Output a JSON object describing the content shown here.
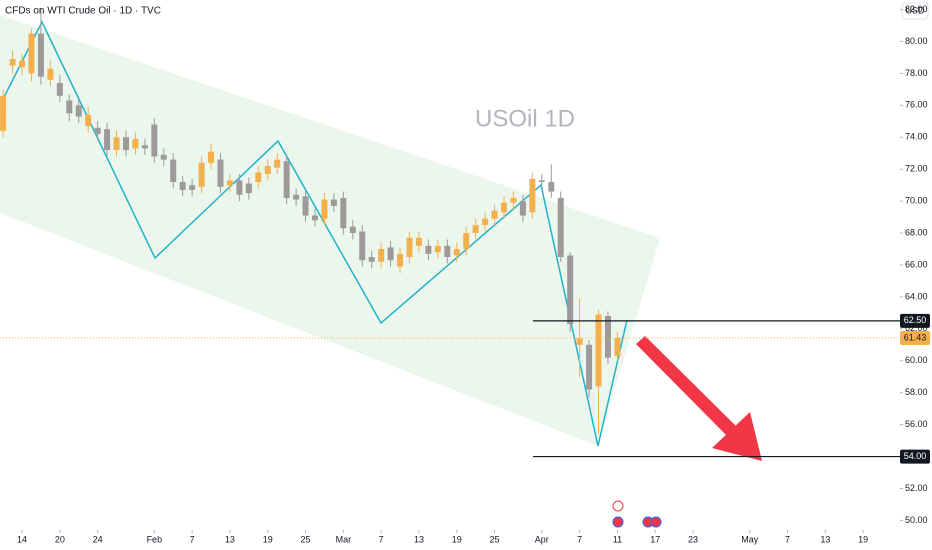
{
  "chart_data": {
    "type": "candlestick",
    "title": "CFDs on WTI Crude Oil · 1D · TVC",
    "watermark": "USOil 1D",
    "currency": "USD",
    "up_color": "#f5b04e",
    "down_color": "#9e999a",
    "x": [
      -2,
      -1,
      0,
      1,
      2,
      3,
      4,
      5,
      6,
      7,
      8,
      9,
      10,
      11,
      12,
      13,
      14,
      15,
      16,
      17,
      18,
      19,
      20,
      21,
      22,
      23,
      24,
      25,
      26,
      27,
      28,
      29,
      30,
      31,
      32,
      33,
      34,
      35,
      36,
      37,
      38,
      39,
      40,
      41,
      42,
      43,
      44,
      45,
      46,
      47,
      48,
      49,
      50,
      51,
      52,
      53,
      54,
      55,
      56,
      57,
      58,
      59,
      60,
      61,
      62,
      63
    ],
    "open": [
      74.4,
      78.5,
      78.4,
      78.0,
      80.5,
      77.6,
      77.4,
      76.3,
      76.0,
      74.7,
      74.6,
      74.5,
      73.2,
      74.0,
      73.3,
      73.5,
      74.8,
      72.9,
      72.6,
      71.2,
      71.0,
      70.9,
      72.4,
      72.6,
      71.0,
      71.3,
      71.1,
      71.2,
      71.7,
      72.1,
      72.5,
      70.4,
      70.3,
      69.1,
      68.9,
      70.1,
      70.2,
      68.4,
      68.1,
      66.5,
      66.2,
      67.1,
      65.9,
      66.5,
      67.2,
      67.2,
      66.8,
      67.2,
      66.6,
      67.0,
      68.0,
      68.5,
      68.9,
      69.3,
      69.9,
      70.0,
      69.3,
      71.3,
      71.2,
      70.2,
      66.6,
      61.0,
      61.0,
      58.4,
      62.8,
      60.3
    ],
    "high": [
      77.0,
      79.4,
      79.2,
      80.8,
      82.1,
      78.8,
      77.9,
      76.7,
      76.4,
      75.9,
      75.0,
      74.9,
      74.4,
      74.4,
      74.3,
      73.9,
      75.2,
      73.3,
      73.0,
      71.6,
      71.4,
      72.8,
      73.6,
      73.0,
      71.7,
      71.7,
      71.5,
      72.2,
      72.6,
      73.0,
      72.9,
      70.8,
      70.7,
      69.5,
      70.5,
      70.5,
      70.6,
      68.8,
      68.5,
      66.9,
      67.4,
      67.5,
      67.1,
      68.1,
      68.1,
      67.6,
      67.6,
      67.6,
      67.4,
      68.4,
      68.9,
      69.3,
      69.8,
      70.3,
      70.6,
      70.4,
      71.8,
      71.7,
      72.3,
      70.6,
      66.8,
      63.9,
      61.3,
      63.2,
      63.1,
      61.8
    ],
    "low": [
      74.0,
      78.0,
      77.9,
      77.5,
      77.3,
      77.2,
      76.2,
      75.0,
      74.9,
      74.3,
      73.8,
      72.8,
      72.8,
      72.8,
      72.9,
      72.9,
      72.4,
      72.2,
      70.8,
      70.3,
      70.3,
      70.5,
      72.0,
      70.5,
      70.6,
      70.0,
      70.1,
      70.8,
      71.3,
      71.7,
      69.8,
      69.7,
      68.7,
      68.4,
      68.5,
      69.3,
      67.9,
      67.6,
      65.9,
      65.8,
      65.8,
      65.9,
      65.5,
      66.1,
      66.8,
      66.3,
      66.4,
      66.1,
      66.2,
      66.6,
      67.6,
      68.1,
      68.5,
      68.9,
      69.5,
      68.7,
      68.9,
      70.8,
      70.2,
      66.2,
      61.8,
      59.0,
      57.7,
      55.4,
      59.8,
      60.0
    ],
    "close": [
      76.6,
      78.9,
      78.8,
      80.5,
      77.8,
      78.3,
      76.6,
      75.5,
      75.3,
      75.4,
      74.2,
      73.2,
      74.0,
      73.2,
      73.9,
      73.3,
      72.8,
      72.6,
      71.2,
      70.7,
      70.7,
      72.4,
      73.1,
      70.9,
      71.3,
      70.4,
      70.5,
      71.8,
      72.2,
      72.6,
      70.2,
      70.1,
      69.1,
      68.8,
      70.1,
      69.7,
      68.3,
      68.0,
      66.3,
      66.2,
      67.0,
      66.3,
      66.7,
      67.7,
      67.7,
      66.7,
      67.2,
      66.5,
      67.0,
      68.0,
      68.5,
      68.9,
      69.4,
      69.9,
      70.2,
      69.1,
      71.4,
      71.2,
      70.6,
      66.5,
      62.3,
      61.4,
      58.2,
      62.9,
      60.2,
      61.43
    ],
    "xlim": [
      -2.33,
      92.9
    ],
    "xticks": [
      {
        "value": 0,
        "label": "14"
      },
      {
        "value": 4,
        "label": "20"
      },
      {
        "value": 8,
        "label": "24"
      },
      {
        "value": 14,
        "label": "Feb"
      },
      {
        "value": 18,
        "label": "7"
      },
      {
        "value": 22,
        "label": "13"
      },
      {
        "value": 26,
        "label": "19"
      },
      {
        "value": 30,
        "label": "25"
      },
      {
        "value": 34,
        "label": "Mar"
      },
      {
        "value": 38,
        "label": "7"
      },
      {
        "value": 42,
        "label": "13"
      },
      {
        "value": 46,
        "label": "19"
      },
      {
        "value": 50,
        "label": "25"
      },
      {
        "value": 55,
        "label": "Apr"
      },
      {
        "value": 59,
        "label": "7"
      },
      {
        "value": 63,
        "label": "11"
      },
      {
        "value": 67,
        "label": "17"
      },
      {
        "value": 71,
        "label": "23"
      },
      {
        "value": 77,
        "label": "May"
      },
      {
        "value": 81,
        "label": "7"
      },
      {
        "value": 85,
        "label": "13"
      },
      {
        "value": 89,
        "label": "19"
      }
    ],
    "ylim": [
      49.4,
      82.6
    ],
    "yticks": [
      {
        "value": 50,
        "label": "50.00"
      },
      {
        "value": 52,
        "label": "52.00"
      },
      {
        "value": 54,
        "label": "54.00"
      },
      {
        "value": 56,
        "label": "56.00"
      },
      {
        "value": 58,
        "label": "58.00"
      },
      {
        "value": 60,
        "label": "60.00"
      },
      {
        "value": 62,
        "label": "62.00"
      },
      {
        "value": 64,
        "label": "64.00"
      },
      {
        "value": 66,
        "label": "66.00"
      },
      {
        "value": 68,
        "label": "68.00"
      },
      {
        "value": 70,
        "label": "70.00"
      },
      {
        "value": 72,
        "label": "72.00"
      },
      {
        "value": 74,
        "label": "74.00"
      },
      {
        "value": 76,
        "label": "76.00"
      },
      {
        "value": 78,
        "label": "78.00"
      },
      {
        "value": 80,
        "label": "80.00"
      },
      {
        "value": 82,
        "label": "82.00"
      }
    ],
    "levels": [
      {
        "value": 62.5,
        "label": "62.50"
      },
      {
        "value": 54,
        "label": "54.00"
      }
    ],
    "current_price": {
      "value": 61.43,
      "label": "61.43"
    }
  }
}
